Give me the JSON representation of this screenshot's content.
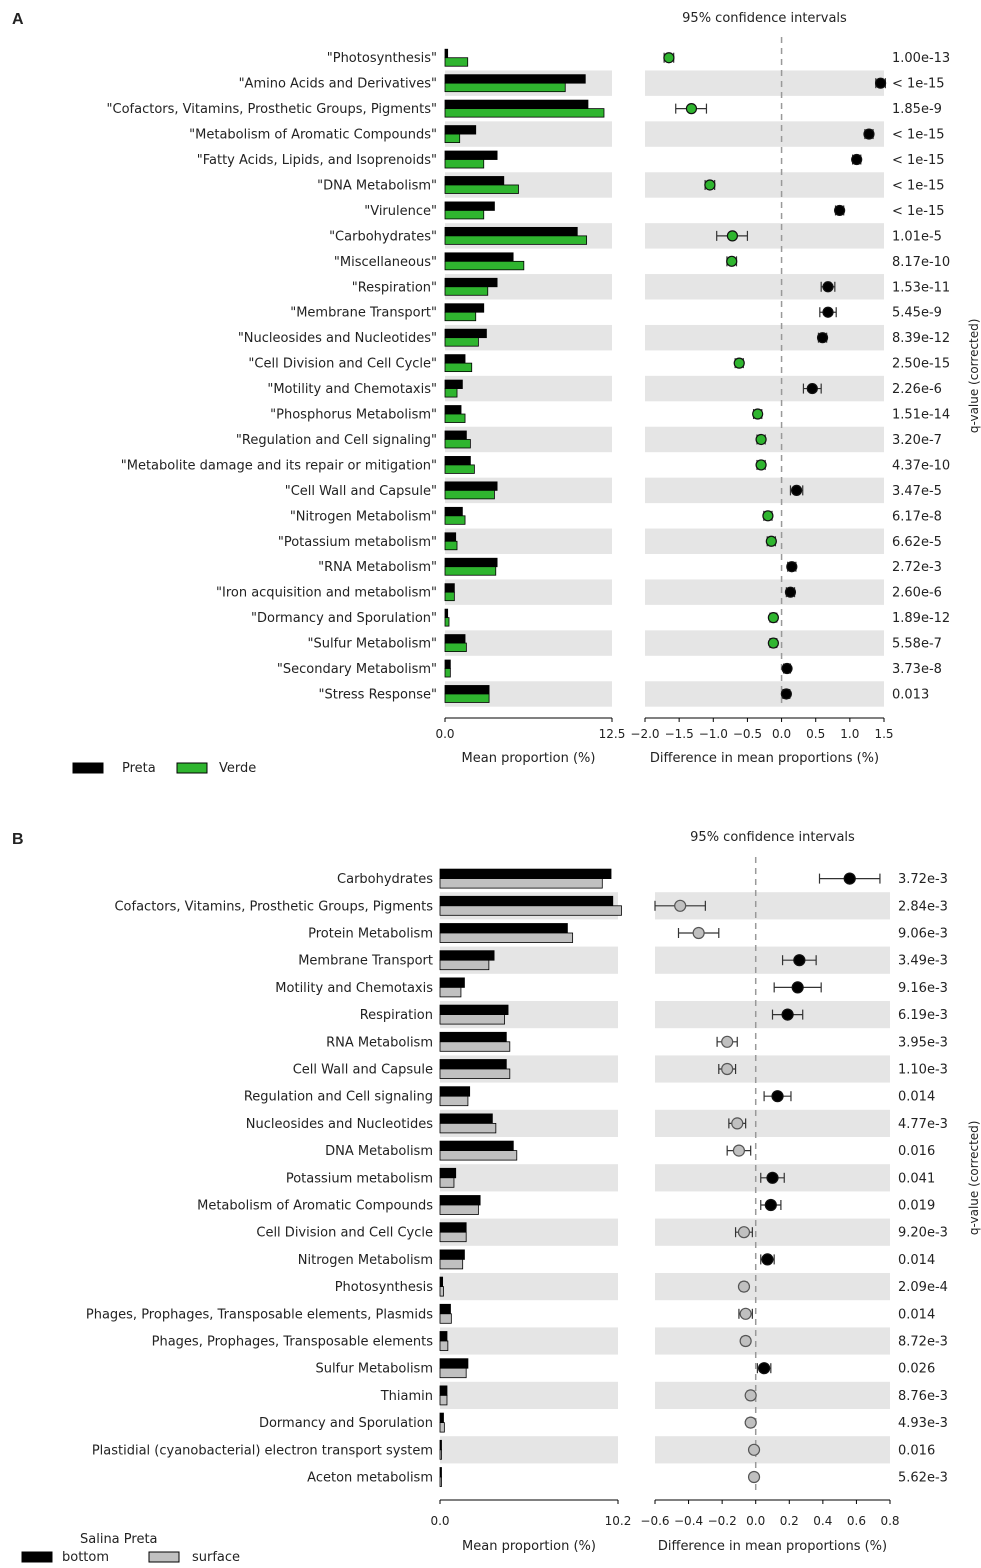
{
  "colors": {
    "stripe": "#e5e5e5",
    "preta": "#000000",
    "verde": "#2fb52f",
    "bottom": "#000000",
    "surface": "#c0c0c0",
    "dash": "#999999"
  },
  "chart_data": [
    {
      "panel": "A",
      "type": "bar",
      "ci_title": "95% confidence intervals",
      "xlabel_bar": "Mean proportion (%)",
      "xlabel_diff": "Difference in mean proportions (%)",
      "qvalue_label": "q-value (corrected)",
      "bar_xlim": [
        0,
        12.5
      ],
      "bar_ticks": [
        "0.0",
        "12.5"
      ],
      "diff_xlim": [
        -2.0,
        1.5
      ],
      "diff_ticks": [
        "−2.0",
        "−1.5",
        "−1.0",
        "−0.5",
        "0.0",
        "0.5",
        "1.0",
        "1.5"
      ],
      "diff_tick_values": [
        -2.0,
        -1.5,
        -1.0,
        -0.5,
        0.0,
        0.5,
        1.0,
        1.5
      ],
      "legend": [
        {
          "name": "Preta",
          "color": "#000000"
        },
        {
          "name": "Verde",
          "color": "#2fb52f"
        }
      ],
      "categories": [
        "\"Photosynthesis\"",
        "\"Amino Acids and Derivatives\"",
        "\"Cofactors, Vitamins, Prosthetic Groups, Pigments\"",
        "\"Metabolism of Aromatic Compounds\"",
        "\"Fatty Acids, Lipids, and Isoprenoids\"",
        "\"DNA Metabolism\"",
        "\"Virulence\"",
        "\"Carbohydrates\"",
        "\"Miscellaneous\"",
        "\"Respiration\"",
        "\"Membrane Transport\"",
        "\"Nucleosides and Nucleotides\"",
        "\"Cell Division and Cell Cycle\"",
        "\"Motility and Chemotaxis\"",
        "\"Phosphorus Metabolism\"",
        "\"Regulation and Cell signaling\"",
        "\"Metabolite damage and its repair or mitigation\"",
        "\"Cell Wall and Capsule\"",
        "\"Nitrogen Metabolism\"",
        "\"Potassium metabolism\"",
        "\"RNA Metabolism\"",
        "\"Iron acquisition and metabolism\"",
        "\"Dormancy and Sporulation\"",
        "\"Sulfur Metabolism\"",
        "\"Secondary Metabolism\"",
        "\"Stress Response\""
      ],
      "series": [
        {
          "name": "Preta",
          "values": [
            0.2,
            10.5,
            10.7,
            2.3,
            3.9,
            4.4,
            3.7,
            9.9,
            5.1,
            3.9,
            2.9,
            3.1,
            1.5,
            1.3,
            1.2,
            1.6,
            1.9,
            3.9,
            1.3,
            0.8,
            3.9,
            0.7,
            0.2,
            1.5,
            0.4,
            3.3
          ]
        },
        {
          "name": "Verde",
          "values": [
            1.7,
            9.0,
            11.9,
            1.1,
            2.9,
            5.5,
            2.9,
            10.6,
            5.9,
            3.2,
            2.3,
            2.5,
            2.0,
            0.9,
            1.5,
            1.9,
            2.2,
            3.7,
            1.5,
            0.9,
            3.8,
            0.7,
            0.3,
            1.6,
            0.4,
            3.3
          ]
        }
      ],
      "diff": [
        {
          "v": -1.65,
          "lo": -1.72,
          "hi": -1.58,
          "color": "verde"
        },
        {
          "v": 1.45,
          "lo": 1.38,
          "hi": 1.52,
          "color": "preta"
        },
        {
          "v": -1.32,
          "lo": -1.55,
          "hi": -1.1,
          "color": "verde"
        },
        {
          "v": 1.28,
          "lo": 1.22,
          "hi": 1.34,
          "color": "preta"
        },
        {
          "v": 1.1,
          "lo": 1.04,
          "hi": 1.16,
          "color": "preta"
        },
        {
          "v": -1.05,
          "lo": -1.12,
          "hi": -0.98,
          "color": "verde"
        },
        {
          "v": 0.85,
          "lo": 0.79,
          "hi": 0.91,
          "color": "preta"
        },
        {
          "v": -0.72,
          "lo": -0.95,
          "hi": -0.5,
          "color": "verde"
        },
        {
          "v": -0.73,
          "lo": -0.8,
          "hi": -0.66,
          "color": "verde"
        },
        {
          "v": 0.68,
          "lo": 0.58,
          "hi": 0.78,
          "color": "preta"
        },
        {
          "v": 0.68,
          "lo": 0.56,
          "hi": 0.8,
          "color": "preta"
        },
        {
          "v": 0.6,
          "lo": 0.54,
          "hi": 0.66,
          "color": "preta"
        },
        {
          "v": -0.62,
          "lo": -0.68,
          "hi": -0.56,
          "color": "verde"
        },
        {
          "v": 0.45,
          "lo": 0.32,
          "hi": 0.58,
          "color": "preta"
        },
        {
          "v": -0.35,
          "lo": -0.41,
          "hi": -0.29,
          "color": "verde"
        },
        {
          "v": -0.3,
          "lo": -0.36,
          "hi": -0.24,
          "color": "verde"
        },
        {
          "v": -0.3,
          "lo": -0.36,
          "hi": -0.24,
          "color": "verde"
        },
        {
          "v": 0.22,
          "lo": 0.13,
          "hi": 0.31,
          "color": "preta"
        },
        {
          "v": -0.2,
          "lo": -0.26,
          "hi": -0.14,
          "color": "verde"
        },
        {
          "v": -0.15,
          "lo": -0.21,
          "hi": -0.09,
          "color": "verde"
        },
        {
          "v": 0.15,
          "lo": 0.09,
          "hi": 0.21,
          "color": "preta"
        },
        {
          "v": 0.13,
          "lo": 0.07,
          "hi": 0.19,
          "color": "preta"
        },
        {
          "v": -0.12,
          "lo": -0.17,
          "hi": -0.07,
          "color": "verde"
        },
        {
          "v": -0.12,
          "lo": -0.17,
          "hi": -0.07,
          "color": "verde"
        },
        {
          "v": 0.08,
          "lo": 0.03,
          "hi": 0.13,
          "color": "preta"
        },
        {
          "v": 0.07,
          "lo": 0.02,
          "hi": 0.12,
          "color": "preta"
        }
      ],
      "qvalues": [
        "1.00e-13",
        "< 1e-15",
        "1.85e-9",
        "< 1e-15",
        "< 1e-15",
        "< 1e-15",
        "< 1e-15",
        "1.01e-5",
        "8.17e-10",
        "1.53e-11",
        "5.45e-9",
        "8.39e-12",
        "2.50e-15",
        "2.26e-6",
        "1.51e-14",
        "3.20e-7",
        "4.37e-10",
        "3.47e-5",
        "6.17e-8",
        "6.62e-5",
        "2.72e-3",
        "2.60e-6",
        "1.89e-12",
        "5.58e-7",
        "3.73e-8",
        "0.013"
      ]
    },
    {
      "panel": "B",
      "type": "bar",
      "ci_title": "95% confidence intervals",
      "xlabel_bar": "Mean proportion (%)",
      "xlabel_diff": "Difference in mean proportions (%)",
      "qvalue_label": "q-value (corrected)",
      "bar_xlim": [
        0,
        10.2
      ],
      "bar_ticks": [
        "0.0",
        "10.2"
      ],
      "diff_xlim": [
        -0.6,
        0.8
      ],
      "diff_ticks": [
        "−0.6",
        "−0.4",
        "−0.2",
        "0.0",
        "0.2",
        "0.4",
        "0.6",
        "0.8"
      ],
      "diff_tick_values": [
        -0.6,
        -0.4,
        -0.2,
        0.0,
        0.2,
        0.4,
        0.6,
        0.8
      ],
      "legend_title": "Salina Preta",
      "legend": [
        {
          "name": "bottom",
          "color": "#000000"
        },
        {
          "name": "surface",
          "color": "#c0c0c0"
        }
      ],
      "categories": [
        "Carbohydrates",
        "Cofactors, Vitamins, Prosthetic Groups, Pigments",
        "Protein Metabolism",
        "Membrane Transport",
        "Motility and Chemotaxis",
        "Respiration",
        "RNA Metabolism",
        "Cell Wall and Capsule",
        "Regulation and Cell signaling",
        "Nucleosides and Nucleotides",
        "DNA Metabolism",
        "Potassium metabolism",
        "Metabolism of Aromatic Compounds",
        "Cell Division and Cell Cycle",
        "Nitrogen Metabolism",
        "Photosynthesis",
        "Phages, Prophages, Transposable elements, Plasmids",
        "Phages, Prophages, Transposable elements",
        "Sulfur Metabolism",
        "Thiamin",
        "Dormancy and Sporulation",
        "Plastidial (cyanobacterial) electron transport system",
        "Aceton metabolism"
      ],
      "series": [
        {
          "name": "bottom",
          "values": [
            9.8,
            9.9,
            7.3,
            3.1,
            1.4,
            3.9,
            3.8,
            3.8,
            1.7,
            3.0,
            4.2,
            0.9,
            2.3,
            1.5,
            1.4,
            0.15,
            0.6,
            0.4,
            1.6,
            0.4,
            0.2,
            0.05,
            0.05
          ]
        },
        {
          "name": "surface",
          "values": [
            9.3,
            10.4,
            7.6,
            2.8,
            1.2,
            3.7,
            4.0,
            4.0,
            1.6,
            3.2,
            4.4,
            0.8,
            2.2,
            1.5,
            1.3,
            0.2,
            0.65,
            0.45,
            1.5,
            0.4,
            0.25,
            0.05,
            0.05
          ]
        }
      ],
      "diff": [
        {
          "v": 0.56,
          "lo": 0.38,
          "hi": 0.74,
          "color": "bottom"
        },
        {
          "v": -0.45,
          "lo": -0.6,
          "hi": -0.3,
          "color": "surface"
        },
        {
          "v": -0.34,
          "lo": -0.46,
          "hi": -0.22,
          "color": "surface"
        },
        {
          "v": 0.26,
          "lo": 0.16,
          "hi": 0.36,
          "color": "bottom"
        },
        {
          "v": 0.25,
          "lo": 0.11,
          "hi": 0.39,
          "color": "bottom"
        },
        {
          "v": 0.19,
          "lo": 0.1,
          "hi": 0.28,
          "color": "bottom"
        },
        {
          "v": -0.17,
          "lo": -0.23,
          "hi": -0.11,
          "color": "surface"
        },
        {
          "v": -0.17,
          "lo": -0.22,
          "hi": -0.12,
          "color": "surface"
        },
        {
          "v": 0.13,
          "lo": 0.05,
          "hi": 0.21,
          "color": "bottom"
        },
        {
          "v": -0.11,
          "lo": -0.16,
          "hi": -0.06,
          "color": "surface"
        },
        {
          "v": -0.1,
          "lo": -0.17,
          "hi": -0.03,
          "color": "surface"
        },
        {
          "v": 0.1,
          "lo": 0.03,
          "hi": 0.17,
          "color": "bottom"
        },
        {
          "v": 0.09,
          "lo": 0.03,
          "hi": 0.15,
          "color": "bottom"
        },
        {
          "v": -0.07,
          "lo": -0.12,
          "hi": -0.02,
          "color": "surface"
        },
        {
          "v": 0.07,
          "lo": 0.03,
          "hi": 0.11,
          "color": "bottom"
        },
        {
          "v": -0.07,
          "lo": -0.09,
          "hi": -0.05,
          "color": "surface"
        },
        {
          "v": -0.06,
          "lo": -0.1,
          "hi": -0.02,
          "color": "surface"
        },
        {
          "v": -0.06,
          "lo": -0.08,
          "hi": -0.04,
          "color": "surface"
        },
        {
          "v": 0.05,
          "lo": 0.01,
          "hi": 0.09,
          "color": "bottom"
        },
        {
          "v": -0.03,
          "lo": -0.05,
          "hi": -0.01,
          "color": "surface"
        },
        {
          "v": -0.03,
          "lo": -0.05,
          "hi": -0.01,
          "color": "surface"
        },
        {
          "v": -0.01,
          "lo": -0.02,
          "hi": 0.0,
          "color": "surface"
        },
        {
          "v": -0.01,
          "lo": -0.02,
          "hi": 0.0,
          "color": "surface"
        }
      ],
      "qvalues": [
        "3.72e-3",
        "2.84e-3",
        "9.06e-3",
        "3.49e-3",
        "9.16e-3",
        "6.19e-3",
        "3.95e-3",
        "1.10e-3",
        "0.014",
        "4.77e-3",
        "0.016",
        "0.041",
        "0.019",
        "9.20e-3",
        "0.014",
        "2.09e-4",
        "0.014",
        "8.72e-3",
        "0.026",
        "8.76e-3",
        "4.93e-3",
        "0.016",
        "5.62e-3"
      ]
    }
  ]
}
